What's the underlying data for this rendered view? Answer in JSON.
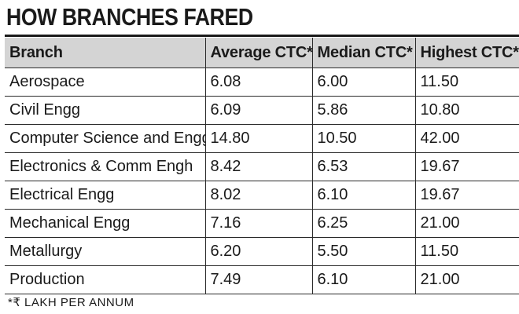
{
  "title": "HOW BRANCHES FARED",
  "footnote": "*₹ LAKH PER ANNUM",
  "chart_data": {
    "type": "table",
    "title": "HOW BRANCHES FARED",
    "columns": [
      "Branch",
      "Average CTC*",
      "Median CTC*",
      "Highest CTC*"
    ],
    "rows": [
      [
        "Aerospace",
        "6.08",
        "6.00",
        "11.50"
      ],
      [
        "Civil Engg",
        "6.09",
        "5.86",
        "10.80"
      ],
      [
        "Computer Science and Engg",
        "14.80",
        "10.50",
        "42.00"
      ],
      [
        "Electronics & Comm Engh",
        "8.42",
        "6.53",
        "19.67"
      ],
      [
        "Electrical Engg",
        "8.02",
        "6.10",
        "19.67"
      ],
      [
        "Mechanical Engg",
        "7.16",
        "6.25",
        "21.00"
      ],
      [
        "Metallurgy",
        "6.20",
        "5.50",
        "11.50"
      ],
      [
        "Production",
        "7.49",
        "6.10",
        "21.00"
      ]
    ],
    "footnote": "*₹ LAKH PER ANNUM",
    "header_background": "#d4d4d4"
  }
}
